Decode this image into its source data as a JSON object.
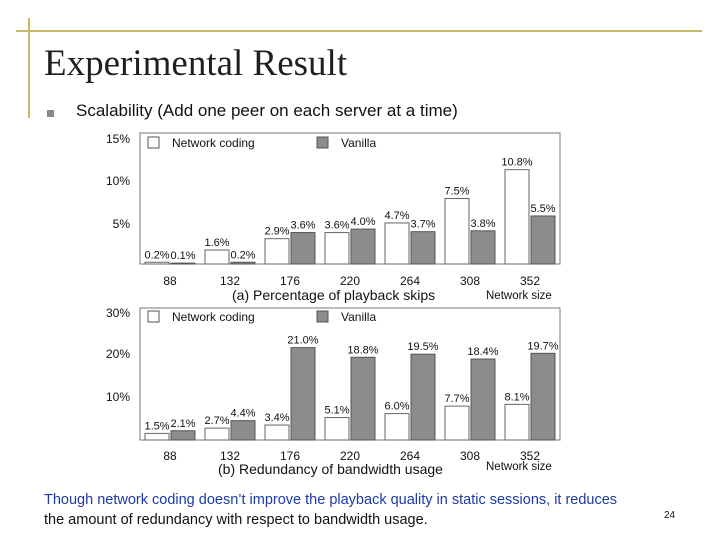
{
  "slide": {
    "title": "Experimental Result",
    "bullet": "Scalability (Add one peer on each server at a time)",
    "footer_line1": "Though network coding doesn’t improve the playback quality in static sessions, it reduces",
    "footer_line2": "the amount of redundancy with respect to bandwidth usage.",
    "slide_number": "24"
  },
  "colors": {
    "network_coding": "#ffffff",
    "vanilla": "#8c8c8c",
    "accent_lines": "#c8b86a"
  },
  "chart_data": [
    {
      "type": "bar",
      "caption": "(a) Percentage of playback skips",
      "xlabel": "Network size",
      "categories": [
        "88",
        "132",
        "176",
        "220",
        "264",
        "308",
        "352"
      ],
      "y_ticks": [
        "15%",
        "10%",
        "5%"
      ],
      "ylim": [
        0,
        15
      ],
      "legend_position": "top-left",
      "series": [
        {
          "name": "Network coding",
          "values": [
            0.2,
            1.6,
            2.9,
            3.6,
            4.7,
            7.5,
            10.8
          ],
          "labels": [
            "0.2%",
            "1.6%",
            "2.9%",
            "3.6%",
            "4.7%",
            "7.5%",
            "10.8%"
          ]
        },
        {
          "name": "Vanilla",
          "values": [
            0.1,
            0.2,
            3.6,
            4.0,
            3.7,
            3.8,
            5.5
          ],
          "labels": [
            "0.1%",
            "0.2%",
            "3.6%",
            "4.0%",
            "3.7%",
            "3.8%",
            "5.5%"
          ]
        }
      ]
    },
    {
      "type": "bar",
      "caption": "(b) Redundancy of bandwidth usage",
      "xlabel": "Network size",
      "categories": [
        "88",
        "132",
        "176",
        "220",
        "264",
        "308",
        "352"
      ],
      "y_ticks": [
        "30%",
        "20%",
        "10%"
      ],
      "ylim": [
        0,
        30
      ],
      "legend_position": "top-left",
      "series": [
        {
          "name": "Network coding",
          "values": [
            1.5,
            2.7,
            3.4,
            5.1,
            6.0,
            7.7,
            8.1
          ],
          "labels": [
            "1.5%",
            "2.7%",
            "3.4%",
            "5.1%",
            "6.0%",
            "7.7%",
            "8.1%"
          ]
        },
        {
          "name": "Vanilla",
          "values": [
            2.1,
            4.4,
            21.0,
            18.8,
            19.5,
            18.4,
            19.7
          ],
          "labels": [
            "2.1%",
            "4.4%",
            "21.0%",
            "18.8%",
            "19.5%",
            "18.4%",
            "19.7%"
          ]
        }
      ]
    }
  ]
}
